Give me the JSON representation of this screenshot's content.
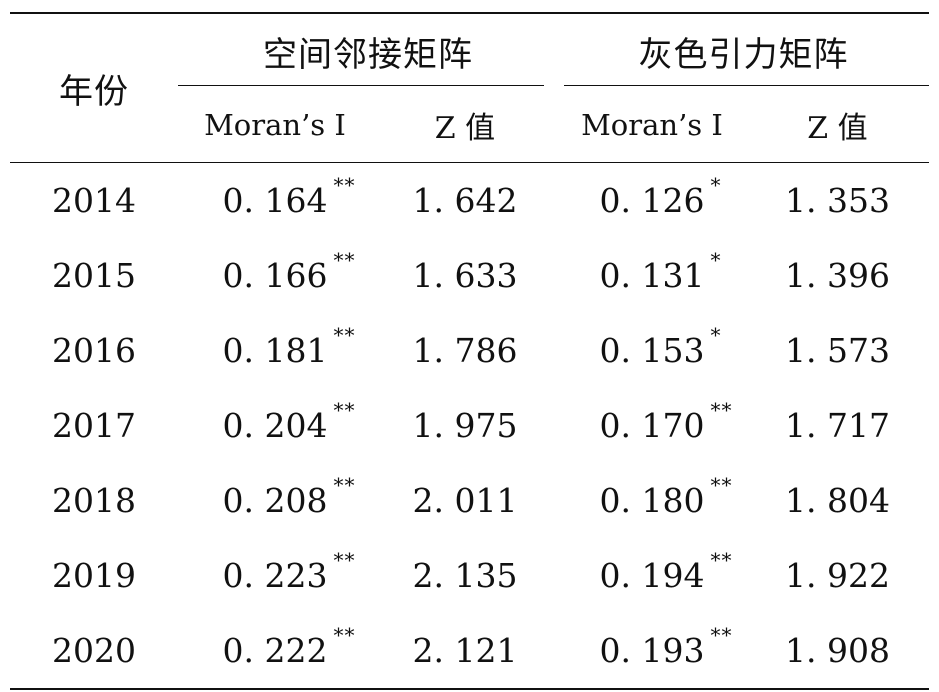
{
  "table": {
    "year_header": "年份",
    "groups": [
      {
        "label": "空间邻接矩阵"
      },
      {
        "label": "灰色引力矩阵"
      }
    ],
    "subheaders": {
      "moran": "Moran’s I",
      "z": "Z 值"
    },
    "rows": [
      {
        "year": "2014",
        "m1": "0. 164",
        "s1": "**",
        "z1": "1. 642",
        "m2": "0. 126",
        "s2": "*",
        "z2": "1. 353"
      },
      {
        "year": "2015",
        "m1": "0. 166",
        "s1": "**",
        "z1": "1. 633",
        "m2": "0. 131",
        "s2": "*",
        "z2": "1. 396"
      },
      {
        "year": "2016",
        "m1": "0. 181",
        "s1": "**",
        "z1": "1. 786",
        "m2": "0. 153",
        "s2": "*",
        "z2": "1. 573"
      },
      {
        "year": "2017",
        "m1": "0. 204",
        "s1": "**",
        "z1": "1. 975",
        "m2": "0. 170",
        "s2": "**",
        "z2": "1. 717"
      },
      {
        "year": "2018",
        "m1": "0. 208",
        "s1": "**",
        "z1": "2. 011",
        "m2": "0. 180",
        "s2": "**",
        "z2": "1. 804"
      },
      {
        "year": "2019",
        "m1": "0. 223",
        "s1": "**",
        "z1": "2. 135",
        "m2": "0. 194",
        "s2": "**",
        "z2": "1. 922"
      },
      {
        "year": "2020",
        "m1": "0. 222",
        "s1": "**",
        "z1": "2. 121",
        "m2": "0. 193",
        "s2": "**",
        "z2": "1. 908"
      }
    ]
  }
}
